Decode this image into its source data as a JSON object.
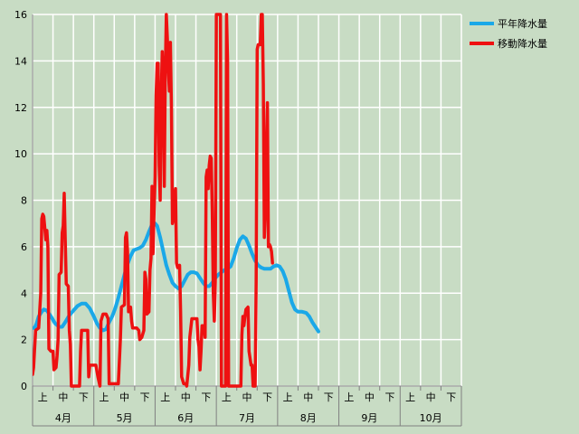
{
  "chart_data": {
    "type": "line",
    "ylim": [
      0,
      16
    ],
    "yticks": [
      0,
      2,
      4,
      6,
      8,
      10,
      12,
      14,
      16
    ],
    "grid": true,
    "legend_position": "top-right",
    "months": [
      "4月",
      "5月",
      "6月",
      "7月",
      "8月",
      "9月",
      "10月"
    ],
    "periods": [
      "上",
      "中",
      "下"
    ],
    "series": [
      {
        "name": "平年降水量",
        "color": "#1aa8e8",
        "points": [
          [
            0.0,
            2.5
          ],
          [
            0.1,
            2.5
          ],
          [
            0.2,
            2.7
          ],
          [
            0.3,
            3.0
          ],
          [
            0.45,
            3.2
          ],
          [
            0.55,
            3.3
          ],
          [
            0.7,
            3.25
          ],
          [
            0.9,
            3.0
          ],
          [
            1.1,
            2.7
          ],
          [
            1.3,
            2.55
          ],
          [
            1.45,
            2.55
          ],
          [
            1.6,
            2.75
          ],
          [
            1.8,
            3.05
          ],
          [
            2.0,
            3.25
          ],
          [
            2.2,
            3.45
          ],
          [
            2.4,
            3.55
          ],
          [
            2.6,
            3.55
          ],
          [
            2.8,
            3.35
          ],
          [
            3.0,
            3.0
          ],
          [
            3.15,
            2.7
          ],
          [
            3.3,
            2.5
          ],
          [
            3.45,
            2.4
          ],
          [
            3.6,
            2.45
          ],
          [
            3.75,
            2.75
          ],
          [
            3.9,
            3.0
          ],
          [
            4.05,
            3.35
          ],
          [
            4.2,
            3.8
          ],
          [
            4.35,
            4.3
          ],
          [
            4.5,
            4.8
          ],
          [
            4.65,
            5.25
          ],
          [
            4.8,
            5.6
          ],
          [
            4.95,
            5.85
          ],
          [
            5.1,
            5.9
          ],
          [
            5.25,
            5.95
          ],
          [
            5.4,
            6.05
          ],
          [
            5.55,
            6.3
          ],
          [
            5.7,
            6.65
          ],
          [
            5.85,
            6.95
          ],
          [
            6.0,
            7.0
          ],
          [
            6.1,
            6.9
          ],
          [
            6.25,
            6.4
          ],
          [
            6.4,
            5.8
          ],
          [
            6.55,
            5.2
          ],
          [
            6.7,
            4.8
          ],
          [
            6.85,
            4.45
          ],
          [
            7.0,
            4.3
          ],
          [
            7.15,
            4.2
          ],
          [
            7.3,
            4.3
          ],
          [
            7.45,
            4.55
          ],
          [
            7.6,
            4.8
          ],
          [
            7.75,
            4.9
          ],
          [
            7.9,
            4.9
          ],
          [
            8.05,
            4.85
          ],
          [
            8.2,
            4.65
          ],
          [
            8.35,
            4.45
          ],
          [
            8.5,
            4.3
          ],
          [
            8.65,
            4.3
          ],
          [
            8.8,
            4.45
          ],
          [
            8.95,
            4.65
          ],
          [
            9.1,
            4.8
          ],
          [
            9.25,
            4.9
          ],
          [
            9.4,
            5.0
          ],
          [
            9.55,
            5.05
          ],
          [
            9.7,
            5.15
          ],
          [
            9.85,
            5.5
          ],
          [
            10.0,
            5.95
          ],
          [
            10.15,
            6.3
          ],
          [
            10.3,
            6.45
          ],
          [
            10.45,
            6.35
          ],
          [
            10.6,
            6.05
          ],
          [
            10.75,
            5.7
          ],
          [
            10.9,
            5.4
          ],
          [
            11.05,
            5.2
          ],
          [
            11.2,
            5.1
          ],
          [
            11.35,
            5.05
          ],
          [
            11.5,
            5.05
          ],
          [
            11.65,
            5.05
          ],
          [
            11.8,
            5.15
          ],
          [
            11.95,
            5.2
          ],
          [
            12.1,
            5.15
          ],
          [
            12.25,
            4.95
          ],
          [
            12.4,
            4.6
          ],
          [
            12.55,
            4.1
          ],
          [
            12.7,
            3.6
          ],
          [
            12.85,
            3.3
          ],
          [
            13.0,
            3.2
          ],
          [
            13.2,
            3.2
          ],
          [
            13.4,
            3.15
          ],
          [
            13.55,
            3.0
          ],
          [
            13.7,
            2.75
          ],
          [
            13.85,
            2.55
          ],
          [
            14.0,
            2.35
          ]
        ]
      },
      {
        "name": "移動降水量",
        "color": "#ee1111",
        "points": [
          [
            0.0,
            0.5
          ],
          [
            0.05,
            0.8
          ],
          [
            0.15,
            2.4
          ],
          [
            0.3,
            2.5
          ],
          [
            0.4,
            4.0
          ],
          [
            0.45,
            7.2
          ],
          [
            0.5,
            7.4
          ],
          [
            0.55,
            7.3
          ],
          [
            0.6,
            6.8
          ],
          [
            0.65,
            6.3
          ],
          [
            0.7,
            6.7
          ],
          [
            0.75,
            6.0
          ],
          [
            0.8,
            1.6
          ],
          [
            0.9,
            1.5
          ],
          [
            1.0,
            1.5
          ],
          [
            1.05,
            0.7
          ],
          [
            1.15,
            0.8
          ],
          [
            1.2,
            1.3
          ],
          [
            1.25,
            2.0
          ],
          [
            1.3,
            4.8
          ],
          [
            1.4,
            4.9
          ],
          [
            1.45,
            6.6
          ],
          [
            1.5,
            6.9
          ],
          [
            1.55,
            8.3
          ],
          [
            1.6,
            6.3
          ],
          [
            1.65,
            4.4
          ],
          [
            1.75,
            4.3
          ],
          [
            1.8,
            2.4
          ],
          [
            1.85,
            1.8
          ],
          [
            1.9,
            0.0
          ],
          [
            2.0,
            0.0
          ],
          [
            2.3,
            0.0
          ],
          [
            2.35,
            1.5
          ],
          [
            2.4,
            2.4
          ],
          [
            2.6,
            2.4
          ],
          [
            2.7,
            2.4
          ],
          [
            2.75,
            0.4
          ],
          [
            2.8,
            0.9
          ],
          [
            3.0,
            0.9
          ],
          [
            3.1,
            0.9
          ],
          [
            3.2,
            0.4
          ],
          [
            3.3,
            0.0
          ],
          [
            3.35,
            2.8
          ],
          [
            3.45,
            3.1
          ],
          [
            3.6,
            3.1
          ],
          [
            3.7,
            2.9
          ],
          [
            3.75,
            0.1
          ],
          [
            3.9,
            0.1
          ],
          [
            4.2,
            0.1
          ],
          [
            4.3,
            2.0
          ],
          [
            4.35,
            3.4
          ],
          [
            4.5,
            3.5
          ],
          [
            4.55,
            6.4
          ],
          [
            4.6,
            6.6
          ],
          [
            4.65,
            5.8
          ],
          [
            4.7,
            3.2
          ],
          [
            4.8,
            3.4
          ],
          [
            4.85,
            2.8
          ],
          [
            4.9,
            2.5
          ],
          [
            5.0,
            2.5
          ],
          [
            5.1,
            2.5
          ],
          [
            5.2,
            2.4
          ],
          [
            5.25,
            2.0
          ],
          [
            5.35,
            2.1
          ],
          [
            5.45,
            2.4
          ],
          [
            5.5,
            4.9
          ],
          [
            5.55,
            4.6
          ],
          [
            5.6,
            3.1
          ],
          [
            5.7,
            3.2
          ],
          [
            5.75,
            5.0
          ],
          [
            5.8,
            5.5
          ],
          [
            5.85,
            8.6
          ],
          [
            5.9,
            5.7
          ],
          [
            5.95,
            7.5
          ],
          [
            6.0,
            9.0
          ],
          [
            6.05,
            12.5
          ],
          [
            6.1,
            13.9
          ],
          [
            6.15,
            13.9
          ],
          [
            6.2,
            9.5
          ],
          [
            6.25,
            8.0
          ],
          [
            6.3,
            12.5
          ],
          [
            6.35,
            14.4
          ],
          [
            6.4,
            13.0
          ],
          [
            6.45,
            8.6
          ],
          [
            6.5,
            13.5
          ],
          [
            6.55,
            16.0
          ],
          [
            6.6,
            15.0
          ],
          [
            6.65,
            13.6
          ],
          [
            6.7,
            12.7
          ],
          [
            6.75,
            14.8
          ],
          [
            6.8,
            12.0
          ],
          [
            6.85,
            7.0
          ],
          [
            6.9,
            7.2
          ],
          [
            6.95,
            8.2
          ],
          [
            7.0,
            8.5
          ],
          [
            7.05,
            5.3
          ],
          [
            7.1,
            5.1
          ],
          [
            7.2,
            5.2
          ],
          [
            7.25,
            3.2
          ],
          [
            7.3,
            0.4
          ],
          [
            7.4,
            0.1
          ],
          [
            7.5,
            0.1
          ],
          [
            7.55,
            0.0
          ],
          [
            7.65,
            0.9
          ],
          [
            7.7,
            2.1
          ],
          [
            7.8,
            2.9
          ],
          [
            7.9,
            2.9
          ],
          [
            8.05,
            2.9
          ],
          [
            8.1,
            2.0
          ],
          [
            8.15,
            1.7
          ],
          [
            8.2,
            0.7
          ],
          [
            8.25,
            1.5
          ],
          [
            8.3,
            2.6
          ],
          [
            8.4,
            2.6
          ],
          [
            8.45,
            2.1
          ],
          [
            8.5,
            9.0
          ],
          [
            8.55,
            9.3
          ],
          [
            8.6,
            8.5
          ],
          [
            8.65,
            9.5
          ],
          [
            8.7,
            9.9
          ],
          [
            8.75,
            9.8
          ],
          [
            8.8,
            7.5
          ],
          [
            8.85,
            4.0
          ],
          [
            8.9,
            2.8
          ],
          [
            8.95,
            4.5
          ],
          [
            9.0,
            16.0
          ],
          [
            9.1,
            16.0
          ],
          [
            9.2,
            16.0
          ],
          [
            9.25,
            0.0
          ],
          [
            9.3,
            0.0
          ],
          [
            9.4,
            0.0
          ],
          [
            9.45,
            0.0
          ],
          [
            9.5,
            16.0
          ],
          [
            9.55,
            14.0
          ],
          [
            9.6,
            0.0
          ],
          [
            9.7,
            0.0
          ],
          [
            10.2,
            0.0
          ],
          [
            10.25,
            2.2
          ],
          [
            10.3,
            3.0
          ],
          [
            10.35,
            2.6
          ],
          [
            10.4,
            3.0
          ],
          [
            10.45,
            3.3
          ],
          [
            10.55,
            3.4
          ],
          [
            10.6,
            1.5
          ],
          [
            10.7,
            0.9
          ],
          [
            10.75,
            0.9
          ],
          [
            10.8,
            0.0
          ],
          [
            10.85,
            0.0
          ],
          [
            10.9,
            0.0
          ],
          [
            10.95,
            4.5
          ],
          [
            11.0,
            14.5
          ],
          [
            11.05,
            14.7
          ],
          [
            11.1,
            14.7
          ],
          [
            11.15,
            14.7
          ],
          [
            11.2,
            16.0
          ],
          [
            11.25,
            16.0
          ],
          [
            11.3,
            13.0
          ],
          [
            11.35,
            6.4
          ],
          [
            11.4,
            7.5
          ],
          [
            11.45,
            10.0
          ],
          [
            11.5,
            12.2
          ],
          [
            11.55,
            6.0
          ],
          [
            11.6,
            6.1
          ],
          [
            11.65,
            6.0
          ],
          [
            11.7,
            5.8
          ],
          [
            11.75,
            5.3
          ]
        ]
      }
    ]
  }
}
